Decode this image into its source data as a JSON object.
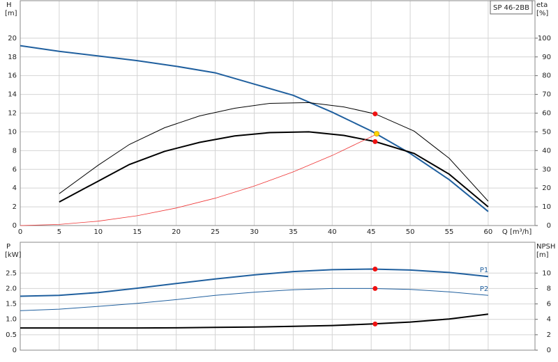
{
  "chart_data": [
    {
      "type": "line",
      "title": "SP 46-2BB",
      "xlabel": "Q [m³/h]",
      "ylabel": "H",
      "yunit": "[m]",
      "y2label": "eta",
      "y2unit": "[%]",
      "xlim": [
        0,
        66
      ],
      "xticks": [
        0,
        5,
        10,
        15,
        20,
        25,
        30,
        35,
        40,
        45,
        50,
        55,
        60
      ],
      "ylim": [
        0,
        24
      ],
      "yticks": [
        0,
        2,
        4,
        6,
        8,
        10,
        12,
        14,
        16,
        18,
        20
      ],
      "y2lim": [
        0,
        120
      ],
      "y2ticks": [
        0,
        10,
        20,
        30,
        40,
        50,
        60,
        70,
        80,
        90,
        100
      ],
      "grid": true,
      "series": [
        {
          "color": "#1f5f9e",
          "line_width": 2,
          "axis": "y",
          "x": [
            0,
            5,
            10,
            15,
            20,
            25,
            30,
            35,
            40,
            45,
            50,
            55,
            60
          ],
          "values": [
            19.2,
            18.6,
            18.1,
            17.6,
            17.0,
            16.3,
            15.1,
            13.9,
            12.1,
            10.1,
            7.7,
            4.9,
            1.5
          ]
        },
        {
          "color": "#000000",
          "line_width": 1,
          "axis": "y2",
          "x": [
            5,
            10,
            14,
            18.5,
            23,
            27.5,
            32,
            37,
            41.5,
            45.5,
            50.5,
            55,
            60
          ],
          "values": [
            17,
            32.2,
            43.3,
            52.2,
            58.5,
            62.6,
            65.2,
            65.6,
            63.3,
            59.6,
            50.4,
            35.9,
            13
          ]
        },
        {
          "color": "#000000",
          "line_width": 2,
          "axis": "y2",
          "x": [
            5,
            10,
            14,
            18.5,
            23,
            27.5,
            32,
            37,
            41.5,
            45.5,
            50.5,
            55,
            60
          ],
          "values": [
            12.6,
            23.7,
            32.6,
            39.6,
            44.4,
            47.8,
            49.6,
            50,
            48.1,
            44.8,
            38.5,
            27.4,
            10
          ]
        },
        {
          "color": "#ee3333",
          "line_width": 0.8,
          "axis": "y",
          "x": [
            0,
            5,
            10,
            15,
            20,
            25,
            30,
            35,
            40,
            45,
            46
          ],
          "values": [
            0,
            0.12,
            0.47,
            1.05,
            1.87,
            2.92,
            4.21,
            5.73,
            7.48,
            9.47,
            9.9
          ]
        }
      ],
      "markers": [
        {
          "x": 45.5,
          "y": 59.6,
          "axis": "y2",
          "color": "#ee1111"
        },
        {
          "x": 45.5,
          "y": 44.8,
          "axis": "y2",
          "color": "#ee1111"
        },
        {
          "x": 45.7,
          "y": 9.8,
          "axis": "y",
          "color": "#ffd700"
        }
      ]
    },
    {
      "type": "line",
      "ylabel": "P",
      "yunit": "[kW]",
      "y2label": "NPSH",
      "y2unit": "[m]",
      "xlim": [
        0,
        66
      ],
      "ylim": [
        0,
        3.5
      ],
      "yticks": [
        0,
        0.5,
        {
          "value": 1,
          "label": "1.0"
        },
        1.5,
        {
          "value": 2,
          "label": "2.0"
        },
        2.5
      ],
      "y2lim": [
        0,
        14
      ],
      "y2ticks": [
        0,
        2,
        4,
        6,
        8,
        10
      ],
      "grid": true,
      "series": [
        {
          "name": "P1",
          "color": "#1f5f9e",
          "line_width": 2,
          "axis": "y",
          "x": [
            0,
            5,
            10,
            15,
            20,
            25,
            30,
            35,
            40,
            45,
            50,
            55,
            60
          ],
          "values": [
            1.75,
            1.78,
            1.87,
            2.01,
            2.16,
            2.31,
            2.44,
            2.55,
            2.61,
            2.63,
            2.6,
            2.52,
            2.39
          ]
        },
        {
          "name": "P2",
          "color": "#1f5f9e",
          "line_width": 1,
          "axis": "y",
          "x": [
            0,
            5,
            10,
            15,
            20,
            25,
            30,
            35,
            40,
            45,
            50,
            55,
            60
          ],
          "values": [
            1.28,
            1.33,
            1.42,
            1.52,
            1.64,
            1.78,
            1.88,
            1.96,
            2.0,
            2.0,
            1.97,
            1.89,
            1.78
          ]
        },
        {
          "color": "#000000",
          "line_width": 2,
          "axis": "y2",
          "x": [
            0,
            5,
            10,
            15,
            20,
            25,
            30,
            35,
            40,
            45,
            50,
            55,
            60
          ],
          "values": [
            2.88,
            2.88,
            2.88,
            2.88,
            2.9,
            2.95,
            3.0,
            3.1,
            3.2,
            3.4,
            3.65,
            4.05,
            4.68
          ]
        }
      ],
      "markers": [
        {
          "x": 45.5,
          "y": 2.63,
          "axis": "y",
          "color": "#ee1111"
        },
        {
          "x": 45.5,
          "y": 2.0,
          "axis": "y",
          "color": "#ee1111"
        },
        {
          "x": 45.5,
          "y": 3.4,
          "axis": "y2",
          "color": "#ee1111"
        }
      ]
    }
  ]
}
